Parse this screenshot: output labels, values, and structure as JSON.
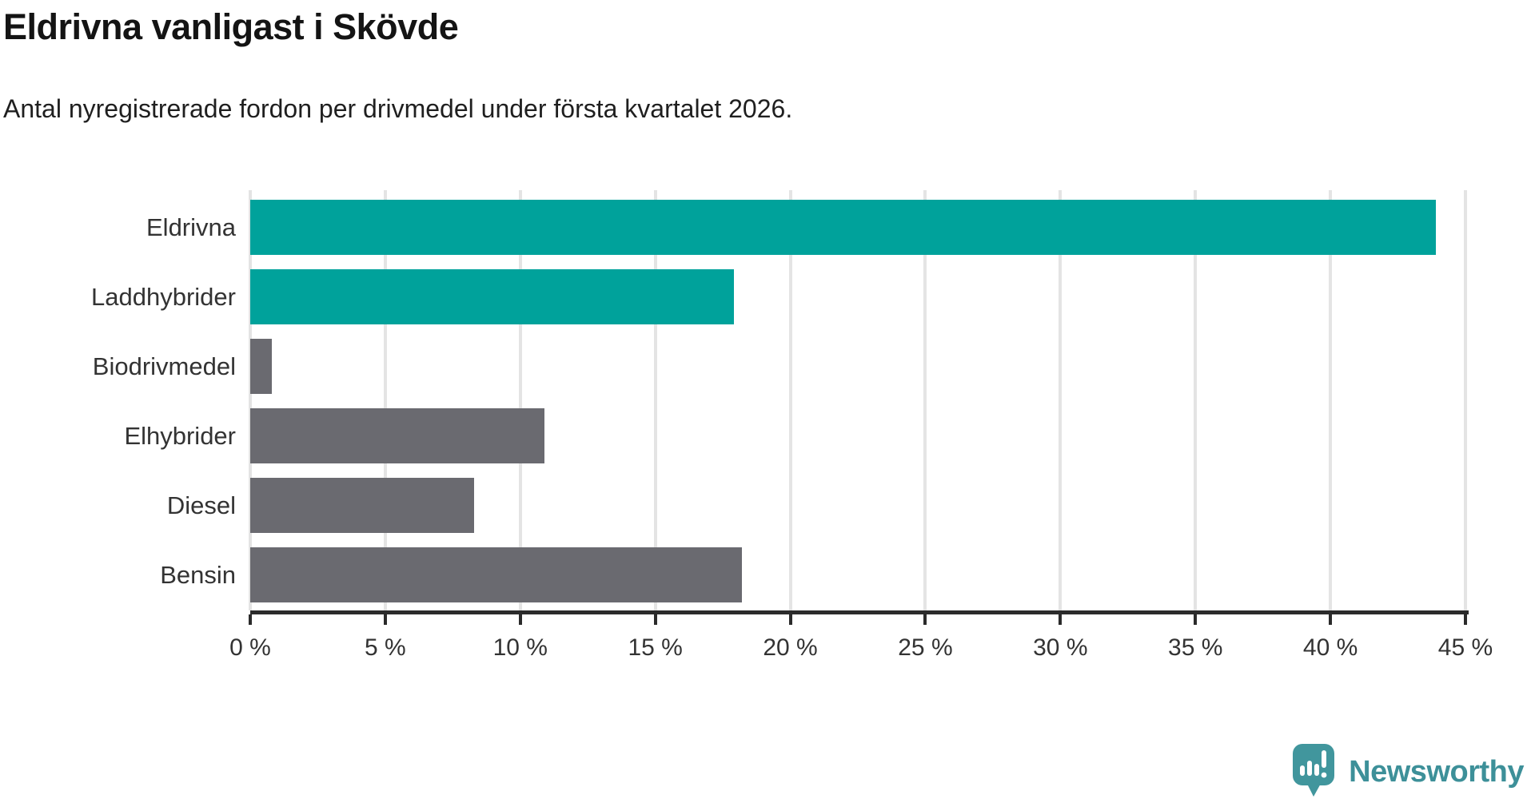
{
  "header": {
    "title": "Eldrivna vanligast i Skövde",
    "subtitle": "Antal nyregistrerade fordon per drivmedel under första kvartalet 2026."
  },
  "chart_data": {
    "type": "bar",
    "orientation": "horizontal",
    "title": "Eldrivna vanligast i Skövde",
    "subtitle": "Antal nyregistrerade fordon per drivmedel under första kvartalet 2026.",
    "categories": [
      "Eldrivna",
      "Laddhybrider",
      "Biodrivmedel",
      "Elhybrider",
      "Diesel",
      "Bensin"
    ],
    "values": [
      43.9,
      17.9,
      0.8,
      10.9,
      8.3,
      18.2
    ],
    "bar_colors": [
      "#00a29b",
      "#00a29b",
      "#6a6a70",
      "#6a6a70",
      "#6a6a70",
      "#6a6a70"
    ],
    "highlight_color": "#00a29b",
    "default_color": "#6a6a70",
    "xlabel": "",
    "ylabel": "",
    "xlim": [
      0,
      45
    ],
    "x_ticks": [
      0,
      5,
      10,
      15,
      20,
      25,
      30,
      35,
      40,
      45
    ],
    "x_tick_labels": [
      "0 %",
      "5 %",
      "10 %",
      "15 %",
      "20 %",
      "25 %",
      "30 %",
      "35 %",
      "40 %",
      "45 %"
    ],
    "grid": true,
    "legend": "none"
  },
  "branding": {
    "logo_text": "Newsworthy",
    "logo_color": "#3d9099",
    "bubble_color": "#41969d"
  }
}
